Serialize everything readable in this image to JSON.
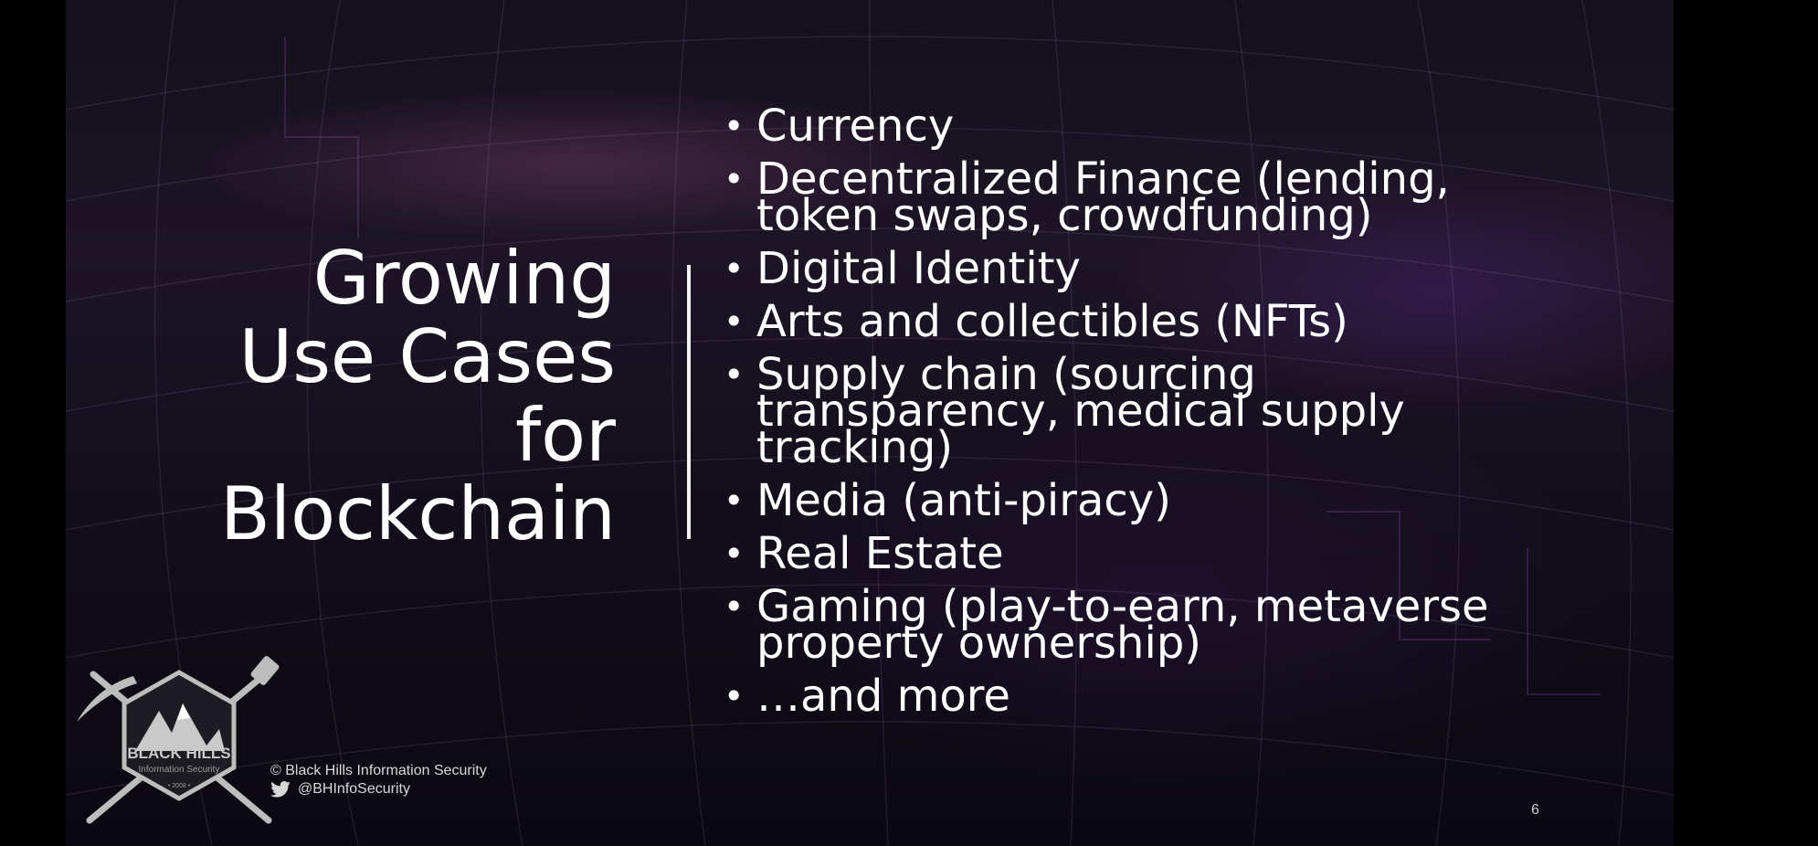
{
  "slide": {
    "title_lines": [
      "Growing",
      "Use Cases",
      "for",
      "Blockchain"
    ],
    "bullets": [
      "Currency",
      "Decentralized Finance (lending, token swaps, crowdfunding)",
      "Digital Identity",
      "Arts and collectibles (NFTs)",
      "Supply chain (sourcing transparency, medical supply tracking)",
      "Media (anti-piracy)",
      "Real Estate",
      "Gaming (play-to-earn, metaverse property ownership)",
      "…and more"
    ],
    "bullet_glyph": "•",
    "page_number": "6"
  },
  "footer": {
    "logo_name": "BLACK HILLS",
    "logo_subtitle": "Information Security",
    "logo_year": "• 2008 •",
    "copyright": "© Black Hills Information Security",
    "twitter_handle": "@BHInfoSecurity",
    "twitter_icon": "twitter-bird-icon"
  },
  "colors": {
    "text": "#ffffff",
    "background": "#000000",
    "accent_purple": "#7a3c8c"
  }
}
